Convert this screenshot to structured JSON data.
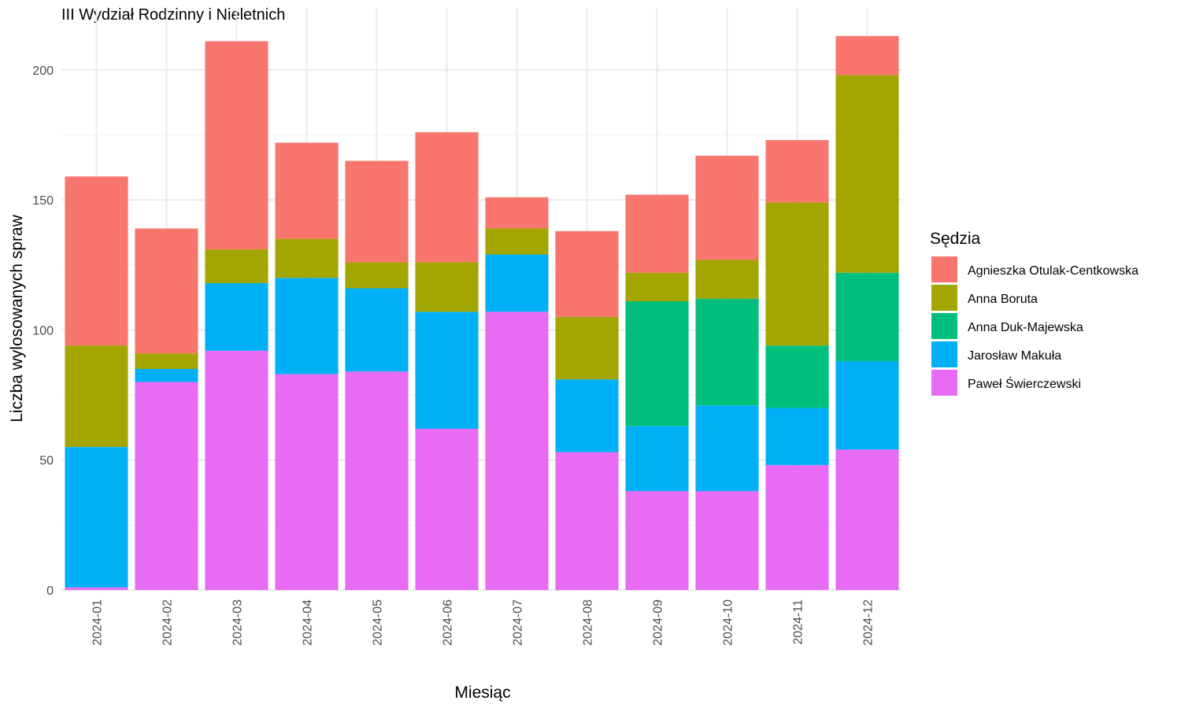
{
  "chart_data": {
    "type": "bar",
    "stacked": true,
    "title": "III Wydział Rodzinny i Nieletnich",
    "xlabel": "Miesiąc",
    "ylabel": "Liczba wylosowanych spraw",
    "legend_title": "Sędzia",
    "legend_position": "right",
    "grid": true,
    "ylim": [
      0,
      213
    ],
    "yticks": [
      0,
      50,
      100,
      150,
      200
    ],
    "categories": [
      "2024-01",
      "2024-02",
      "2024-03",
      "2024-04",
      "2024-05",
      "2024-06",
      "2024-07",
      "2024-08",
      "2024-09",
      "2024-10",
      "2024-11",
      "2024-12"
    ],
    "series": [
      {
        "name": "Paweł Świerczewski",
        "color": "#E76BF3",
        "values": [
          1,
          80,
          92,
          83,
          84,
          62,
          107,
          53,
          38,
          38,
          48,
          54
        ]
      },
      {
        "name": "Jarosław Makuła",
        "color": "#00B0F6",
        "values": [
          54,
          5,
          26,
          37,
          32,
          45,
          22,
          28,
          25,
          33,
          22,
          34
        ]
      },
      {
        "name": "Anna Duk-Majewska",
        "color": "#00BF7D",
        "values": [
          0,
          0,
          0,
          0,
          0,
          0,
          0,
          0,
          48,
          41,
          24,
          34
        ]
      },
      {
        "name": "Anna Boruta",
        "color": "#A3A500",
        "values": [
          39,
          6,
          13,
          15,
          10,
          19,
          10,
          24,
          11,
          15,
          55,
          76
        ]
      },
      {
        "name": "Agnieszka Otulak-Centkowska",
        "color": "#F8766D",
        "values": [
          65,
          48,
          80,
          37,
          39,
          50,
          12,
          33,
          30,
          40,
          24,
          15
        ]
      }
    ],
    "legend_order": [
      "Agnieszka Otulak-Centkowska",
      "Anna Boruta",
      "Anna Duk-Majewska",
      "Jarosław Makuła",
      "Paweł Świerczewski"
    ]
  }
}
